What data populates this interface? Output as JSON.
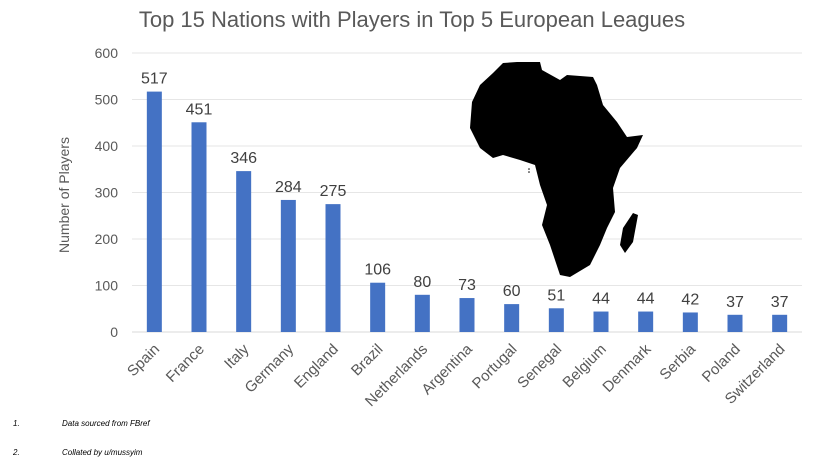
{
  "chart_data": {
    "type": "bar",
    "title": "Top 15 Nations with Players in Top 5 European Leagues",
    "xlabel": "",
    "ylabel": "Number of Players",
    "ylim": [
      0,
      600
    ],
    "yticks": [
      0,
      100,
      200,
      300,
      400,
      500,
      600
    ],
    "grid": true,
    "bar_color": "#4472C4",
    "categories": [
      "Spain",
      "France",
      "Italy",
      "Germany",
      "England",
      "Brazil",
      "Netherlands",
      "Argentina",
      "Portugal",
      "Senegal",
      "Belgium",
      "Denmark",
      "Serbia",
      "Poland",
      "Switzerland"
    ],
    "values": [
      517,
      451,
      346,
      284,
      275,
      106,
      80,
      73,
      60,
      51,
      44,
      44,
      42,
      37,
      37
    ],
    "data_labels": true,
    "image": "africa-silhouette"
  },
  "footnotes": [
    {
      "num": "1.",
      "text": "Data sourced from FBref"
    },
    {
      "num": "2.",
      "text": "Collated by u/mussyim"
    }
  ]
}
